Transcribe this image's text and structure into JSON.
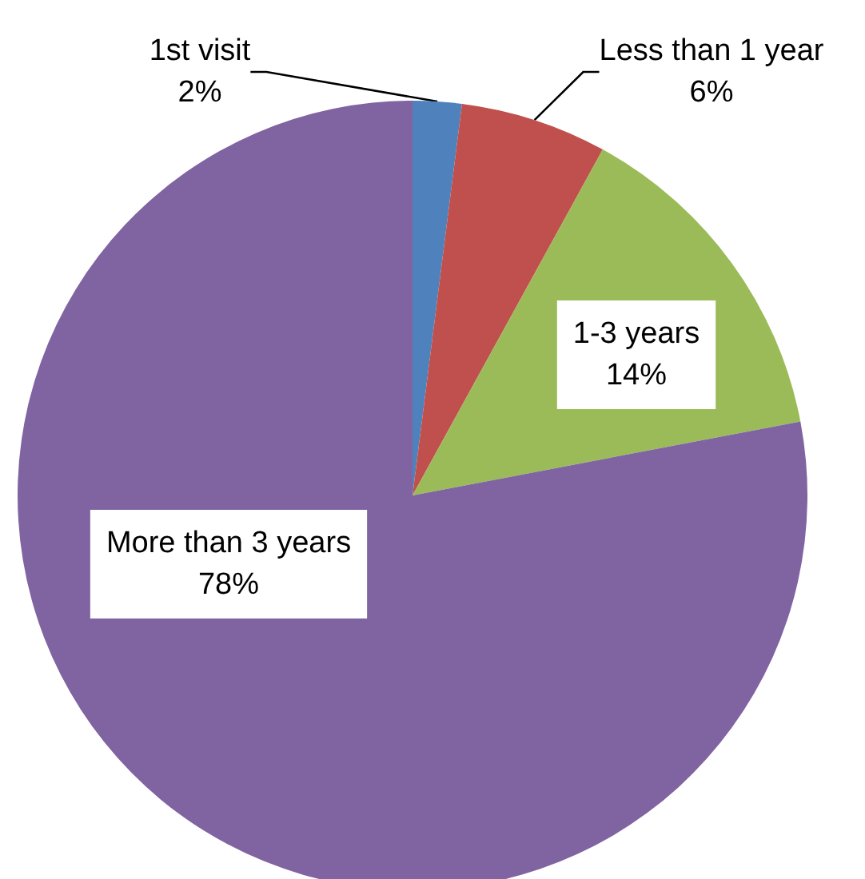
{
  "chart_data": {
    "type": "pie",
    "categories": [
      "1st visit",
      "Less than 1 year",
      "1-3 years",
      "More than 3 years"
    ],
    "values": [
      2,
      6,
      14,
      78
    ],
    "colors": [
      "#4f81bd",
      "#c0504d",
      "#9bbb59",
      "#8064a2"
    ],
    "value_labels": [
      "2%",
      "6%",
      "14%",
      "78%"
    ],
    "legend": false
  }
}
